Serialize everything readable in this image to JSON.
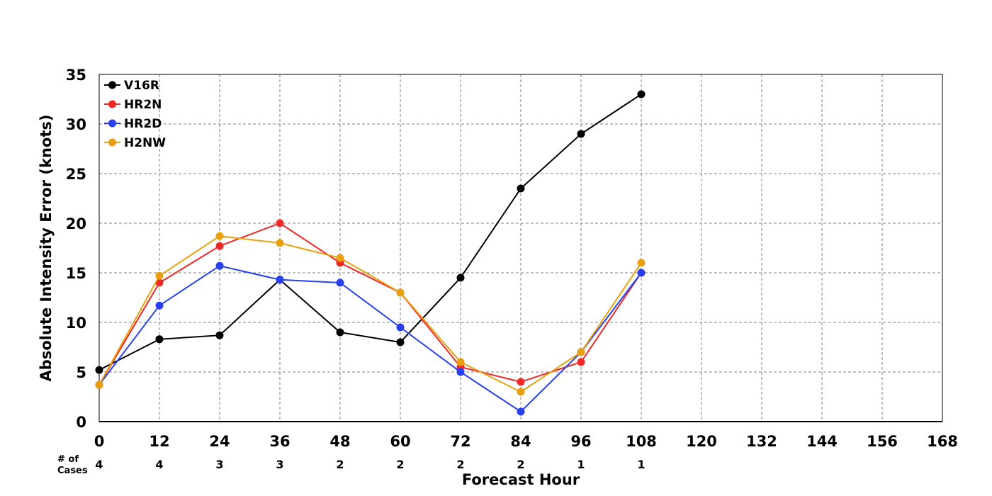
{
  "chart_data": {
    "type": "line",
    "xlabel": "Forecast Hour",
    "ylabel": "Absolute Intensity Error (knots)",
    "x_ticks": [
      "0",
      "12",
      "24",
      "36",
      "48",
      "60",
      "72",
      "84",
      "96",
      "108",
      "120",
      "132",
      "144",
      "156",
      "168"
    ],
    "y_ticks": [
      "0",
      "5",
      "10",
      "15",
      "20",
      "25",
      "30",
      "35"
    ],
    "xlim": [
      0,
      168
    ],
    "ylim": [
      0,
      35
    ],
    "grid": true,
    "legend_position": "top-left",
    "x": [
      0,
      12,
      24,
      36,
      48,
      60,
      72,
      84,
      96,
      108
    ],
    "series": [
      {
        "name": "V16R",
        "color": "#000000",
        "values": [
          5.2,
          8.3,
          8.7,
          14.3,
          9.0,
          8.0,
          14.5,
          23.5,
          29.0,
          33.0
        ]
      },
      {
        "name": "HR2N",
        "color": "#f02828",
        "values": [
          3.7,
          14.0,
          17.7,
          20.0,
          16.0,
          13.0,
          5.5,
          4.0,
          6.0,
          15.0
        ]
      },
      {
        "name": "HR2D",
        "color": "#2840f0",
        "values": [
          3.7,
          11.7,
          15.7,
          14.3,
          14.0,
          9.5,
          5.0,
          1.0,
          7.0,
          15.0
        ]
      },
      {
        "name": "H2NW",
        "color": "#e8a010",
        "values": [
          3.7,
          14.7,
          18.7,
          18.0,
          16.5,
          13.0,
          6.0,
          3.0,
          7.0,
          16.0
        ]
      }
    ],
    "cases_label_line1": "# of",
    "cases_label_line2": "Cases",
    "cases": [
      "4",
      "4",
      "3",
      "3",
      "2",
      "2",
      "2",
      "2",
      "1",
      "1"
    ]
  }
}
